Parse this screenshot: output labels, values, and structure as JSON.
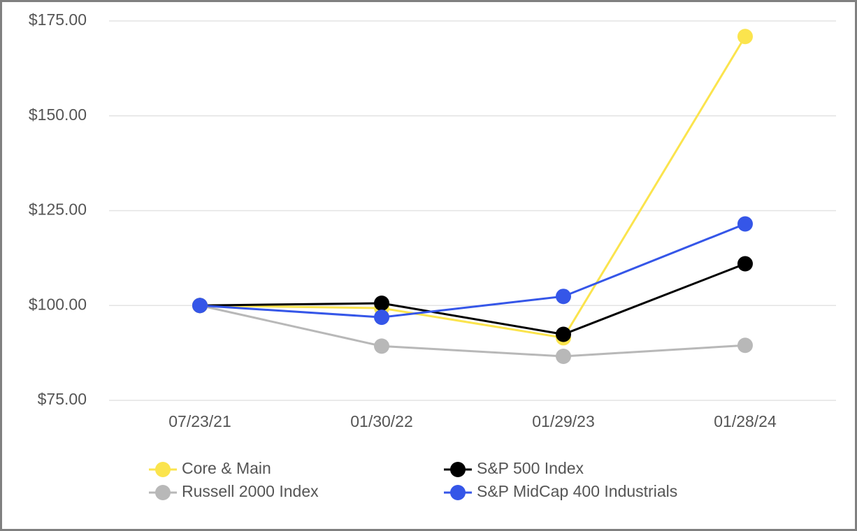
{
  "chart_data": {
    "type": "line",
    "categories": [
      "07/23/21",
      "01/30/22",
      "01/29/23",
      "01/28/24"
    ],
    "series": [
      {
        "name": "Core & Main",
        "color": "#fbe44d",
        "values": [
          100,
          99.3,
          91.5,
          170.9
        ]
      },
      {
        "name": "S&P 500 Index",
        "color": "#000000",
        "values": [
          100,
          100.6,
          92.4,
          111.0
        ]
      },
      {
        "name": "Russell 2000 Index",
        "color": "#b8b8b8",
        "values": [
          100,
          89.3,
          86.6,
          89.5
        ]
      },
      {
        "name": "S&P MidCap 400 Industrials",
        "color": "#3556e8",
        "values": [
          100,
          96.9,
          102.4,
          121.5
        ]
      }
    ],
    "ylim": [
      75,
      175
    ],
    "yticks": [
      {
        "value": 75,
        "label": "$75.00"
      },
      {
        "value": 100,
        "label": "$100.00"
      },
      {
        "value": 125,
        "label": "$125.00"
      },
      {
        "value": 150,
        "label": "$150.00"
      },
      {
        "value": 175,
        "label": "$175.00"
      }
    ],
    "grid": true
  }
}
